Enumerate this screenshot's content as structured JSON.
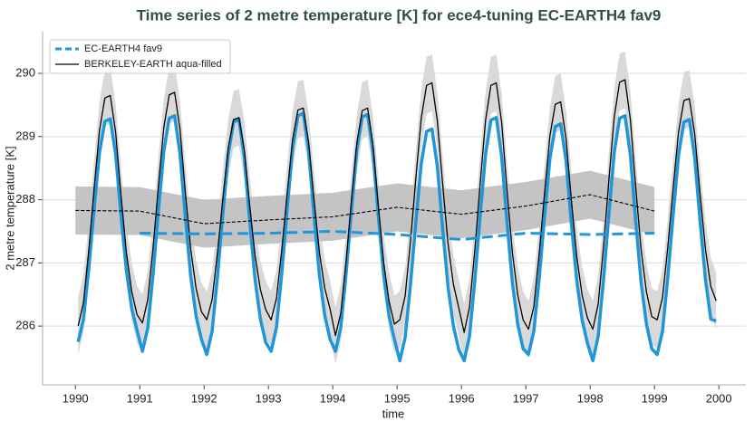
{
  "chart_data": {
    "type": "line",
    "title": "Time series of 2 metre temperature [K] for ece4-tuning EC-EARTH4 fav9",
    "xlabel": "time",
    "ylabel": "2 metre temperature [K]",
    "xlim": [
      1989.49,
      2000.42
    ],
    "ylim": [
      285.07,
      290.66
    ],
    "xticks": [
      1990,
      1991,
      1992,
      1993,
      1994,
      1995,
      1996,
      1997,
      1998,
      1999,
      2000
    ],
    "yticks": [
      286,
      287,
      288,
      289,
      290
    ],
    "grid": true,
    "legend": "upper left",
    "x": [
      1990.042,
      1990.125,
      1990.208,
      1990.292,
      1990.375,
      1990.458,
      1990.542,
      1990.625,
      1990.708,
      1990.792,
      1990.875,
      1990.958,
      1991.042,
      1991.125,
      1991.208,
      1991.292,
      1991.375,
      1991.458,
      1991.542,
      1991.625,
      1991.708,
      1991.792,
      1991.875,
      1991.958,
      1992.042,
      1992.125,
      1992.208,
      1992.292,
      1992.375,
      1992.458,
      1992.542,
      1992.625,
      1992.708,
      1992.792,
      1992.875,
      1992.958,
      1993.042,
      1993.125,
      1993.208,
      1993.292,
      1993.375,
      1993.458,
      1993.542,
      1993.625,
      1993.708,
      1993.792,
      1993.875,
      1993.958,
      1994.042,
      1994.125,
      1994.208,
      1994.292,
      1994.375,
      1994.458,
      1994.542,
      1994.625,
      1994.708,
      1994.792,
      1994.875,
      1994.958,
      1995.042,
      1995.125,
      1995.208,
      1995.292,
      1995.375,
      1995.458,
      1995.542,
      1995.625,
      1995.708,
      1995.792,
      1995.875,
      1995.958,
      1996.042,
      1996.125,
      1996.208,
      1996.292,
      1996.375,
      1996.458,
      1996.542,
      1996.625,
      1996.708,
      1996.792,
      1996.875,
      1996.958,
      1997.042,
      1997.125,
      1997.208,
      1997.292,
      1997.375,
      1997.458,
      1997.542,
      1997.625,
      1997.708,
      1997.792,
      1997.875,
      1997.958,
      1998.042,
      1998.125,
      1998.208,
      1998.292,
      1998.375,
      1998.458,
      1998.542,
      1998.625,
      1998.708,
      1998.792,
      1998.875,
      1998.958,
      1999.042,
      1999.125,
      1999.208,
      1999.292,
      1999.375,
      1999.458,
      1999.542,
      1999.625,
      1999.708,
      1999.792,
      1999.875,
      1999.958
    ],
    "series": [
      {
        "name": "EC-EARTH4 fav9",
        "color": "#1f96d8",
        "legend_dash": true,
        "values": [
          285.75,
          286.1,
          286.91,
          287.87,
          288.75,
          289.24,
          289.28,
          288.72,
          287.76,
          286.88,
          286.28,
          285.93,
          285.6,
          285.97,
          286.83,
          287.84,
          288.77,
          289.29,
          289.33,
          288.73,
          287.73,
          286.79,
          286.16,
          285.79,
          285.55,
          285.92,
          286.78,
          287.78,
          288.71,
          289.23,
          289.27,
          288.67,
          287.67,
          286.74,
          286.11,
          285.74,
          285.6,
          285.98,
          286.84,
          287.86,
          288.8,
          289.33,
          289.37,
          288.77,
          287.75,
          286.81,
          286.17,
          285.79,
          285.6,
          285.98,
          286.84,
          287.85,
          288.79,
          289.31,
          289.35,
          288.75,
          287.74,
          286.8,
          286.16,
          285.79,
          285.45,
          285.82,
          286.66,
          287.65,
          288.57,
          289.08,
          289.12,
          288.53,
          287.54,
          286.62,
          286.0,
          285.63,
          285.45,
          285.84,
          286.72,
          287.76,
          288.72,
          289.26,
          289.3,
          288.68,
          287.64,
          286.68,
          286.03,
          285.64,
          285.55,
          285.92,
          286.75,
          287.74,
          288.65,
          289.16,
          289.2,
          288.62,
          287.63,
          286.72,
          286.1,
          285.73,
          285.45,
          285.84,
          286.73,
          287.78,
          288.75,
          289.29,
          289.33,
          288.71,
          287.66,
          286.69,
          286.03,
          285.64,
          285.55,
          285.92,
          286.78,
          287.78,
          288.71,
          289.23,
          289.27,
          288.67,
          287.67,
          286.74,
          286.11,
          286.08
        ],
        "annual_x": [
          1991,
          1992,
          1993,
          1994,
          1995,
          1996,
          1997,
          1998,
          1999
        ],
        "annual_values": [
          287.47,
          287.46,
          287.47,
          287.5,
          287.45,
          287.37,
          287.47,
          287.45,
          287.47
        ]
      },
      {
        "name": "BERKELEY-EARTH aqua-filled",
        "color": "#000000",
        "legend_dash": false,
        "band_color": "#d9d9d9",
        "band_halfwidth": 0.45,
        "values": [
          286.0,
          286.37,
          287.2,
          288.19,
          289.1,
          289.61,
          289.65,
          289.07,
          288.08,
          287.17,
          286.55,
          286.18,
          286.05,
          286.42,
          287.25,
          288.24,
          289.15,
          289.66,
          289.7,
          289.12,
          288.13,
          287.22,
          286.6,
          286.23,
          286.1,
          286.42,
          287.16,
          288.02,
          288.82,
          289.27,
          289.3,
          288.79,
          287.92,
          287.12,
          286.58,
          286.26,
          286.1,
          286.44,
          287.21,
          288.11,
          288.95,
          289.42,
          289.45,
          288.91,
          288.01,
          287.17,
          286.6,
          286.27,
          285.85,
          286.21,
          287.04,
          288.01,
          288.91,
          289.41,
          289.45,
          288.87,
          287.9,
          287.0,
          286.39,
          286.03,
          286.1,
          286.48,
          287.34,
          288.35,
          289.29,
          289.81,
          289.85,
          289.25,
          288.24,
          287.3,
          286.66,
          286.29,
          285.9,
          286.3,
          287.2,
          288.27,
          289.26,
          289.81,
          289.85,
          289.22,
          288.15,
          287.16,
          286.49,
          286.1,
          285.95,
          286.31,
          287.14,
          288.11,
          289.01,
          289.51,
          289.55,
          288.97,
          288.0,
          287.1,
          286.49,
          286.13,
          285.95,
          286.35,
          287.25,
          288.32,
          289.31,
          289.86,
          289.9,
          289.27,
          288.2,
          287.21,
          286.54,
          286.15,
          286.1,
          286.45,
          287.26,
          288.2,
          289.08,
          289.57,
          289.6,
          289.04,
          288.1,
          287.22,
          286.63,
          286.4
        ],
        "annual_x": [
          1990,
          1991,
          1992,
          1993,
          1994,
          1995,
          1996,
          1997,
          1998,
          1999
        ],
        "annual_values": [
          287.83,
          287.82,
          287.62,
          287.68,
          287.73,
          287.88,
          287.77,
          287.9,
          288.08,
          287.82
        ],
        "annual_band_color": "#c4c4c4",
        "annual_band_halfwidth": 0.38
      }
    ]
  }
}
